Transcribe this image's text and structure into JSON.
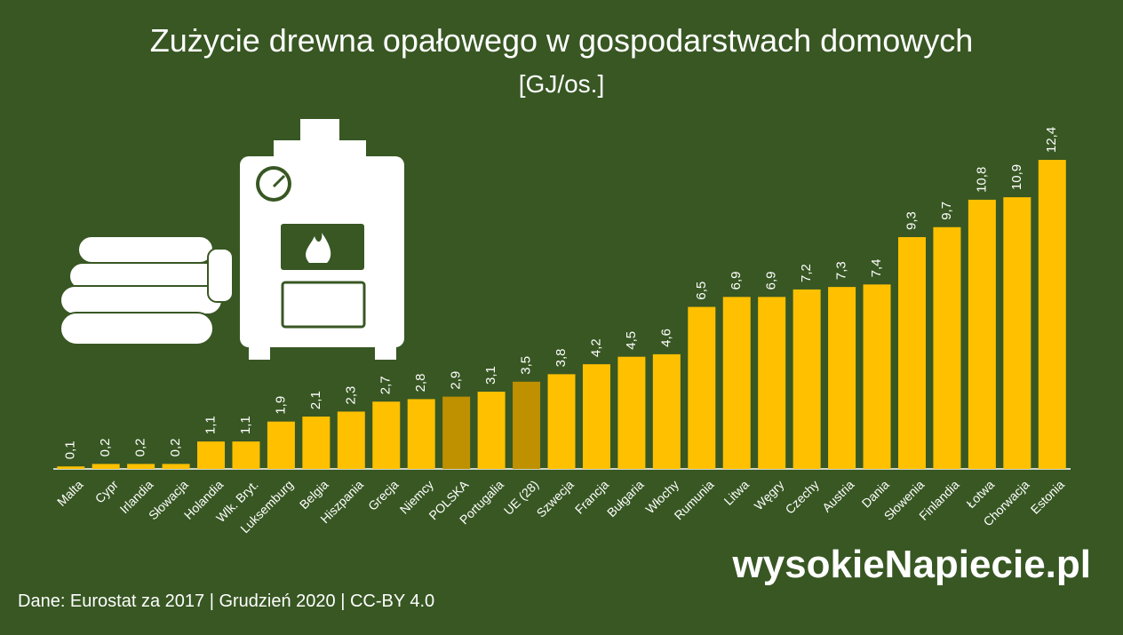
{
  "chart_data": {
    "type": "bar",
    "title": "Zużycie drewna opałowego w gospodarstwach domowych",
    "subtitle": "[GJ/os.]",
    "categories": [
      "Malta",
      "Cypr",
      "Irlandia",
      "Słowacja",
      "Holandia",
      "Wlk. Bryt.",
      "Luksemburg",
      "Belgia",
      "Hiszpania",
      "Grecja",
      "Niemcy",
      "POLSKA",
      "Portugalia",
      "UE (28)",
      "Szwecja",
      "Francja",
      "Bułgaria",
      "Włochy",
      "Rumunia",
      "Litwa",
      "Węgry",
      "Czechy",
      "Austria",
      "Dania",
      "Słowenia",
      "Finlandia",
      "Łotwa",
      "Chorwacja",
      "Estonia"
    ],
    "values": [
      0.1,
      0.2,
      0.2,
      0.2,
      1.1,
      1.1,
      1.9,
      2.1,
      2.3,
      2.7,
      2.8,
      2.9,
      3.1,
      3.5,
      3.8,
      4.2,
      4.5,
      4.6,
      6.5,
      6.9,
      6.9,
      7.2,
      7.3,
      7.4,
      9.3,
      9.7,
      10.8,
      10.9,
      12.4
    ],
    "value_labels": [
      "0,1",
      "0,2",
      "0,2",
      "0,2",
      "1,1",
      "1,1",
      "1,9",
      "2,1",
      "2,3",
      "2,7",
      "2,8",
      "2,9",
      "3,1",
      "3,5",
      "3,8",
      "4,2",
      "4,5",
      "4,6",
      "6,5",
      "6,9",
      "6,9",
      "7,2",
      "7,3",
      "7,4",
      "9,3",
      "9,7",
      "10,8",
      "10,9",
      "12,4"
    ],
    "colors": [
      "#ffc000",
      "#ffc000",
      "#ffc000",
      "#ffc000",
      "#ffc000",
      "#ffc000",
      "#ffc000",
      "#ffc000",
      "#ffc000",
      "#ffc000",
      "#ffc000",
      "#bf9000",
      "#ffc000",
      "#bf9000",
      "#ffc000",
      "#ffc000",
      "#ffc000",
      "#ffc000",
      "#ffc000",
      "#ffc000",
      "#ffc000",
      "#ffc000",
      "#ffc000",
      "#ffc000",
      "#ffc000",
      "#ffc000",
      "#ffc000",
      "#ffc000",
      "#ffc000"
    ],
    "source": "Dane: Eurostat za 2017 |  Grudzień 2020  |  CC-BY 4.0",
    "logo": "wysokieNapiecie.pl"
  }
}
